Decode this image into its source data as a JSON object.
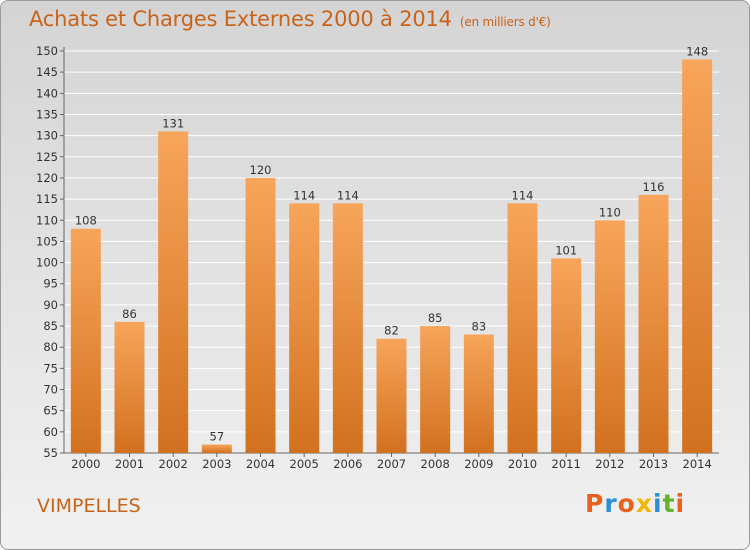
{
  "header": {
    "title": "Achats et Charges Externes 2000 à 2014",
    "subtitle": "(en milliers d'€)"
  },
  "footer": {
    "commune": "VIMPELLES",
    "brand": "Proxiti",
    "brand_colors": [
      "#e8611f",
      "#2b8fd8",
      "#e8611f",
      "#f2b705",
      "#2b8fd8",
      "#64b32e",
      "#e8611f"
    ]
  },
  "colors": {
    "bar_light": "#f7a55a",
    "bar_dark": "#d2711f",
    "text_accent": "#c9631a",
    "grid": "#ffffff"
  },
  "chart_data": {
    "type": "bar",
    "categories": [
      "2000",
      "2001",
      "2002",
      "2003",
      "2004",
      "2005",
      "2006",
      "2007",
      "2008",
      "2009",
      "2010",
      "2011",
      "2012",
      "2013",
      "2014"
    ],
    "values": [
      108,
      86,
      131,
      57,
      120,
      114,
      114,
      82,
      85,
      83,
      114,
      101,
      110,
      116,
      148
    ],
    "title": "Achats et Charges Externes 2000 à 2014",
    "xlabel": "",
    "ylabel": "",
    "ylim": [
      55,
      150
    ],
    "yticks": [
      55,
      60,
      65,
      70,
      75,
      80,
      85,
      90,
      95,
      100,
      105,
      110,
      115,
      120,
      125,
      130,
      135,
      140,
      145,
      150
    ],
    "grid": true,
    "legend": "none",
    "data_labels": true
  }
}
